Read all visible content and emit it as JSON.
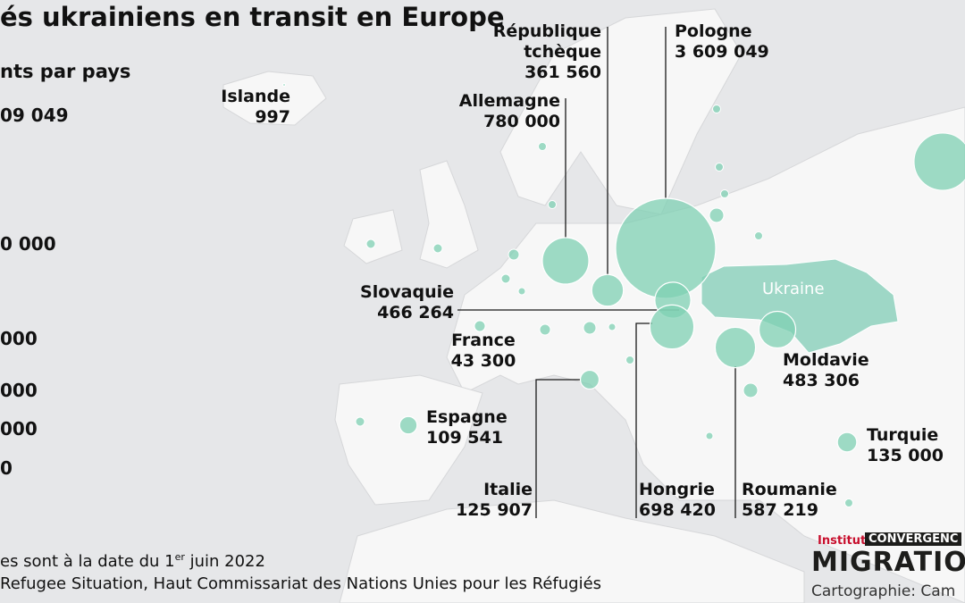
{
  "header": {
    "title": "és ukrainiens en transit en Europe",
    "subtitle": "nts par pays"
  },
  "legend": [
    "09 049",
    "0 000",
    "000",
    "000",
    "000",
    "0"
  ],
  "map_label": "Ukraine",
  "places": [
    {
      "name": "Pologne",
      "value": 3609049,
      "value_label": "3 609 049"
    },
    {
      "name": "République\ntchèque",
      "value": 361560,
      "value_label": "361 560"
    },
    {
      "name": "Allemagne",
      "value": 780000,
      "value_label": "780 000"
    },
    {
      "name": "Slovaquie",
      "value": 466264,
      "value_label": "466 264"
    },
    {
      "name": "France",
      "value": 43300,
      "value_label": "43 300"
    },
    {
      "name": "Espagne",
      "value": 109541,
      "value_label": "109 541"
    },
    {
      "name": "Italie",
      "value": 125907,
      "value_label": "125 907"
    },
    {
      "name": "Hongrie",
      "value": 698420,
      "value_label": "698 420"
    },
    {
      "name": "Roumanie",
      "value": 587219,
      "value_label": "587 219"
    },
    {
      "name": "Moldavie",
      "value": 483306,
      "value_label": "483 306"
    },
    {
      "name": "Turquie",
      "value": 135000,
      "value_label": "135 000"
    },
    {
      "name": "Islande",
      "value": 997,
      "value_label": "997"
    }
  ],
  "footer": {
    "note_start": "es sont à la date du 1",
    "note_sup": "er",
    "note_end": " juin 2022",
    "source": "Refugee Situation, Haut Commissariat des Nations Unies pour les Réfugiés"
  },
  "logo": {
    "institut": "Institut",
    "convergence": "CONVERGENC",
    "migration": "MIGRATION",
    "credit": "Cartographie: Cam"
  }
}
